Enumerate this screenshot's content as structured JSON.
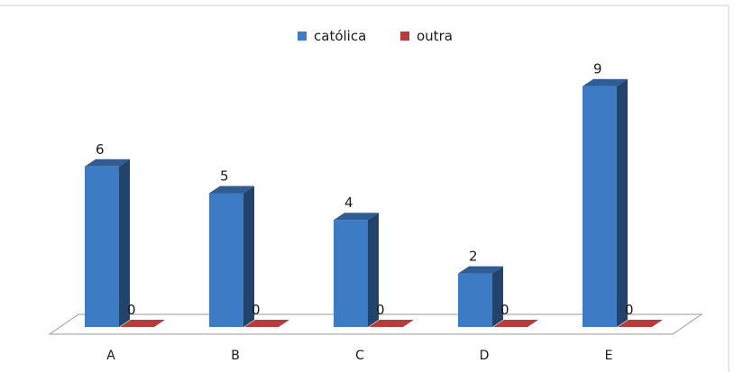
{
  "chart_data": {
    "type": "bar",
    "categories": [
      "A",
      "B",
      "C",
      "D",
      "E"
    ],
    "series": [
      {
        "name": "católica",
        "values": [
          6,
          5,
          4,
          2,
          9
        ],
        "color": "#3D7BC4"
      },
      {
        "name": "outra",
        "values": [
          0,
          0,
          0,
          0,
          0
        ],
        "color": "#B83A3A"
      }
    ],
    "title": "",
    "xlabel": "",
    "ylabel": "",
    "ylim": [
      0,
      10
    ],
    "grid": false,
    "legend_position": "top",
    "style": "3d-column",
    "data_labels": true
  }
}
